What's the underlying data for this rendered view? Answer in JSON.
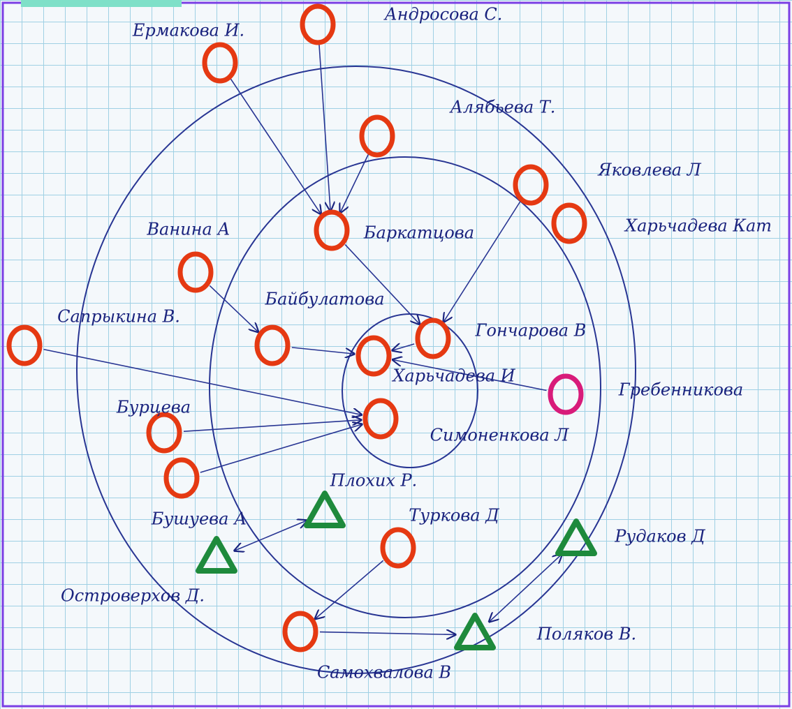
{
  "nodes": [
    {
      "label": "Ермакова И."
    },
    {
      "label": "Андросова С."
    },
    {
      "label": "Алябьева Т."
    },
    {
      "label": "Яковлева Л"
    },
    {
      "label": "Харьчадева Кат"
    },
    {
      "label": "Баркатцова"
    },
    {
      "label": "Ванина А"
    },
    {
      "label": "Байбулатова"
    },
    {
      "label": "Гончарова В"
    },
    {
      "label": "Сапрыкина В."
    },
    {
      "label": "Харьчадева И"
    },
    {
      "label": "Гребенникова"
    },
    {
      "label": "Бурцева"
    },
    {
      "label": "Симоненкова Л"
    },
    {
      "label": "Плохих Р."
    },
    {
      "label": "Бушуева А"
    },
    {
      "label": "Туркова Д"
    },
    {
      "label": "Рудаков Д"
    },
    {
      "label": "Островерхов Д."
    },
    {
      "label": "Поляков В."
    },
    {
      "label": "Самохвалова В"
    }
  ]
}
